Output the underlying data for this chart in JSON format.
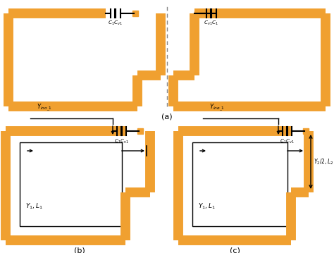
{
  "orange": "#F0A030",
  "black": "#000000",
  "white": "#FFFFFF",
  "gray_dash": "#888888",
  "fig_width": 4.74,
  "fig_height": 3.59,
  "label_a": "(a)",
  "label_b": "(b)",
  "label_c": "(c)",
  "text_ino": "$Y_{ino\\_1}$",
  "text_ine": "$Y_{ine\\_1}$",
  "text_C1Cv1_left": "$C_1$$C_{v1}$",
  "text_Cv1C1_right": "$C_{v1}$$C_1$",
  "text_C1Cv1_b": "$C_1$$C_{v1}$",
  "text_C1Cv1_c": "$C_1$$C_{v1}$",
  "text_Y1L1": "$Y_1,L_1$",
  "text_Y2L2": "$Y_2/2,L_2$"
}
